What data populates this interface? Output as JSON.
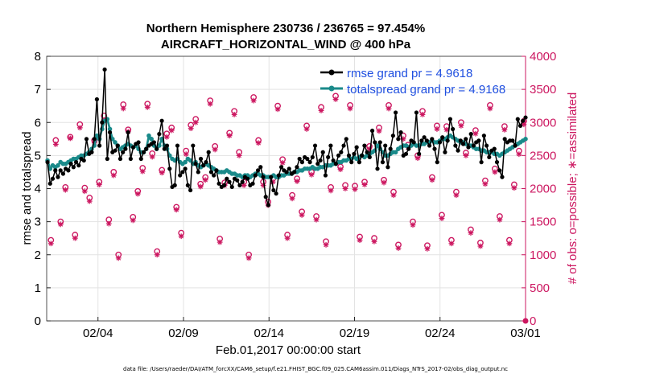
{
  "chart_data": {
    "type": "line",
    "title": "Northern Hemisphere 230736 / 236765 = 97.454%",
    "subtitle": "AIRCRAFT_HORIZONTAL_WIND @ 400 hPa",
    "xlabel": "Feb.01,2017 00:00:00 start",
    "ylabel_left": "rmse and totalspread",
    "ylabel_right": "# of obs: o=possible; ∗=assimilated",
    "x_tick_labels": [
      "02/04",
      "02/09",
      "02/14",
      "02/19",
      "02/24",
      "03/01"
    ],
    "x_tick_days": [
      3,
      8,
      13,
      18,
      23,
      28
    ],
    "xlim_days": [
      0,
      28
    ],
    "ylim_left": [
      0,
      8
    ],
    "yticks_left": [
      "0",
      "1",
      "2",
      "3",
      "4",
      "5",
      "6",
      "7",
      "8"
    ],
    "ylim_right": [
      0,
      4000
    ],
    "yticks_right": [
      "0",
      "500",
      "1000",
      "1500",
      "2000",
      "2500",
      "3000",
      "3500",
      "4000"
    ],
    "grid": true,
    "legend_position": "top-right",
    "colors": {
      "rmse": "#000000",
      "spread": "#1a8a8a",
      "obs": "#cc1760",
      "legend_text": "#1f4fe0"
    },
    "series": [
      {
        "name": "rmse grand pr = 4.9618",
        "axis": "left",
        "values": [
          4.8,
          4.15,
          4.3,
          4.55,
          4.35,
          4.55,
          4.45,
          4.6,
          4.55,
          4.75,
          4.65,
          4.8,
          4.7,
          4.9,
          4.85,
          5.5,
          5.05,
          5.1,
          5.5,
          6.7,
          5.3,
          6.0,
          7.6,
          4.9,
          5.7,
          5.1,
          5.15,
          5.3,
          4.9,
          5.1,
          5.2,
          5.7,
          4.9,
          5.25,
          5.35,
          5.4,
          4.9,
          5.1,
          5.2,
          5.3,
          5.35,
          5.4,
          5.2,
          5.65,
          6.05,
          5.2,
          5.3,
          4.6,
          4.05,
          4.1,
          5.3,
          4.4,
          4.5,
          4.6,
          4.1,
          3.95,
          5.3,
          4.75,
          4.5,
          4.9,
          4.7,
          4.8,
          5.1,
          4.5,
          4.4,
          4.55,
          4.15,
          4.05,
          4.1,
          4.3,
          4.2,
          4.05,
          4.3,
          4.25,
          4.1,
          4.2,
          4.35,
          4.3,
          4.1,
          4.15,
          4.4,
          4.55,
          4.65,
          4.35,
          3.75,
          3.5,
          4.35,
          3.95,
          3.85,
          4.4,
          4.65,
          4.55,
          4.5,
          4.6,
          4.45,
          4.5,
          4.65,
          4.9,
          4.8,
          4.95,
          4.9,
          4.8,
          4.95,
          5.3,
          4.75,
          4.85,
          5.1,
          4.4,
          4.95,
          5.3,
          4.85,
          4.75,
          5.0,
          5.1,
          5.3,
          5.5,
          5.0,
          4.8,
          5.05,
          5.25,
          4.8,
          5.0,
          5.3,
          5.1,
          4.95,
          5.75,
          5.4,
          4.6,
          5.4,
          4.8,
          5.3,
          4.65,
          5.2,
          5.6,
          6.3,
          5.5,
          5.7,
          5.0,
          5.05,
          5.2,
          5.45,
          5.4,
          6.3,
          5.05,
          5.45,
          5.55,
          5.45,
          5.3,
          5.5,
          5.2,
          4.8,
          5.4,
          5.55,
          5.1,
          5.45,
          6.1,
          5.8,
          5.3,
          5.15,
          5.45,
          5.35,
          5.5,
          5.25,
          5.65,
          5.3,
          5.4,
          5.45,
          4.8,
          5.6,
          5.3,
          4.95,
          5.15,
          5.2,
          4.8,
          4.55,
          4.35,
          5.5,
          5.4,
          5.45,
          5.45,
          5.3,
          6.1,
          5.9,
          6.05,
          6.15
        ],
        "marker": "circle"
      },
      {
        "name": "totalspread grand pr = 4.9168",
        "axis": "left",
        "values": [
          4.85,
          4.6,
          4.7,
          4.65,
          4.7,
          4.8,
          4.75,
          4.75,
          4.8,
          4.85,
          4.9,
          4.9,
          4.95,
          5.0,
          5.0,
          5.05,
          5.1,
          5.2,
          5.3,
          5.6,
          5.5,
          5.8,
          6.05,
          6.1,
          5.8,
          5.5,
          5.4,
          5.3,
          5.2,
          5.25,
          5.3,
          5.35,
          5.3,
          5.25,
          5.3,
          5.2,
          5.1,
          5.1,
          5.2,
          5.6,
          5.5,
          5.3,
          5.2,
          5.3,
          5.5,
          5.3,
          5.2,
          5.0,
          4.9,
          4.85,
          4.9,
          4.8,
          4.75,
          4.8,
          4.9,
          4.85,
          4.75,
          4.8,
          4.7,
          4.65,
          4.7,
          4.75,
          4.7,
          4.65,
          4.6,
          4.55,
          4.5,
          4.5,
          4.5,
          4.55,
          4.5,
          4.45,
          4.45,
          4.4,
          4.4,
          4.35,
          4.4,
          4.4,
          4.35,
          4.4,
          4.45,
          4.45,
          4.4,
          4.4,
          4.35,
          4.35,
          4.35,
          4.4,
          4.35,
          4.35,
          4.4,
          4.4,
          4.45,
          4.45,
          4.45,
          4.5,
          4.5,
          4.55,
          4.55,
          4.6,
          4.6,
          4.6,
          4.65,
          4.6,
          4.6,
          4.65,
          4.65,
          4.7,
          4.7,
          4.7,
          4.75,
          4.75,
          4.8,
          4.8,
          4.85,
          4.85,
          4.9,
          4.9,
          4.95,
          4.9,
          4.95,
          5.0,
          4.95,
          5.0,
          5.05,
          5.1,
          5.15,
          5.3,
          5.2,
          5.1,
          5.0,
          5.0,
          5.05,
          5.1,
          5.1,
          5.2,
          5.25,
          5.3,
          5.3,
          5.25,
          5.3,
          5.35,
          5.3,
          5.3,
          5.35,
          5.35,
          5.4,
          5.4,
          5.45,
          5.4,
          5.4,
          5.45,
          5.5,
          5.5,
          5.55,
          5.6,
          5.55,
          5.5,
          5.45,
          5.4,
          5.4,
          5.35,
          5.3,
          5.3,
          5.25,
          5.2,
          5.2,
          5.15,
          5.15,
          5.1,
          5.1,
          5.1,
          5.05,
          5.05,
          5.0,
          5.05,
          5.1,
          5.15,
          5.2,
          5.25,
          5.3,
          5.35,
          5.4,
          5.45,
          5.5
        ],
        "marker": "circle"
      },
      {
        "name": "possible",
        "axis": "right",
        "marker": "o",
        "values": [
          1220,
          2730,
          1500,
          2020,
          2780,
          1300,
          2970,
          2010,
          1860,
          2730,
          2100,
          3100,
          1530,
          2250,
          1000,
          3270,
          2890,
          1570,
          1960,
          2310,
          3280,
          2530,
          1050,
          2280,
          2830,
          2920,
          1720,
          1330,
          2570,
          2960,
          3050,
          2070,
          2170,
          3330,
          2640,
          1240,
          2090,
          2840,
          3170,
          2550,
          2100,
          1000,
          3380,
          2730,
          2100,
          1800,
          2150,
          3250,
          2440,
          1300,
          1900,
          2150,
          1650,
          2950,
          2250,
          1580,
          3230,
          1200,
          2020,
          3400,
          2330,
          2050,
          3260,
          2040,
          1270,
          2100,
          2640,
          1250,
          2920,
          2130,
          3260,
          1950,
          1150,
          2800,
          2660,
          1500,
          2500,
          3170,
          1140,
          2170,
          2950,
          1600,
          2940,
          1220,
          1950,
          3000,
          2540,
          1380,
          2880,
          1180,
          2120,
          3260,
          2300,
          1580,
          2940,
          1220,
          2060,
          2570,
          3020
        ]
      },
      {
        "name": "assimilated",
        "axis": "right",
        "marker": "*",
        "values": [
          1170,
          2670,
          1460,
          1980,
          2760,
          1250,
          2920,
          1960,
          1810,
          2690,
          2060,
          3040,
          1470,
          2200,
          950,
          3210,
          2860,
          1520,
          1920,
          2260,
          3230,
          2480,
          1000,
          2240,
          2780,
          2880,
          1680,
          1280,
          2520,
          2910,
          3000,
          2030,
          2130,
          3280,
          2590,
          1190,
          2050,
          2800,
          3120,
          2500,
          2050,
          950,
          3330,
          2690,
          2050,
          1750,
          2100,
          3200,
          2390,
          1250,
          1850,
          2110,
          1600,
          2900,
          2210,
          1530,
          3180,
          1150,
          1970,
          3350,
          2290,
          2000,
          3210,
          1990,
          1220,
          2060,
          2600,
          1200,
          2870,
          2090,
          3210,
          1900,
          1100,
          2750,
          2620,
          1450,
          2460,
          3120,
          1090,
          2130,
          2900,
          1550,
          2890,
          1170,
          1900,
          2950,
          2500,
          1330,
          2830,
          1130,
          2070,
          3210,
          2250,
          1530,
          2890,
          1170,
          2010,
          2520,
          2970
        ]
      }
    ]
  },
  "footer": "data file: /Users/raeder/DAI/ATM_forcXX/CAM6_setup/f.e21.FHIST_BGC.f09_025.CAM6assim.011/Diags_NTrS_2017-02/obs_diag_output.nc"
}
